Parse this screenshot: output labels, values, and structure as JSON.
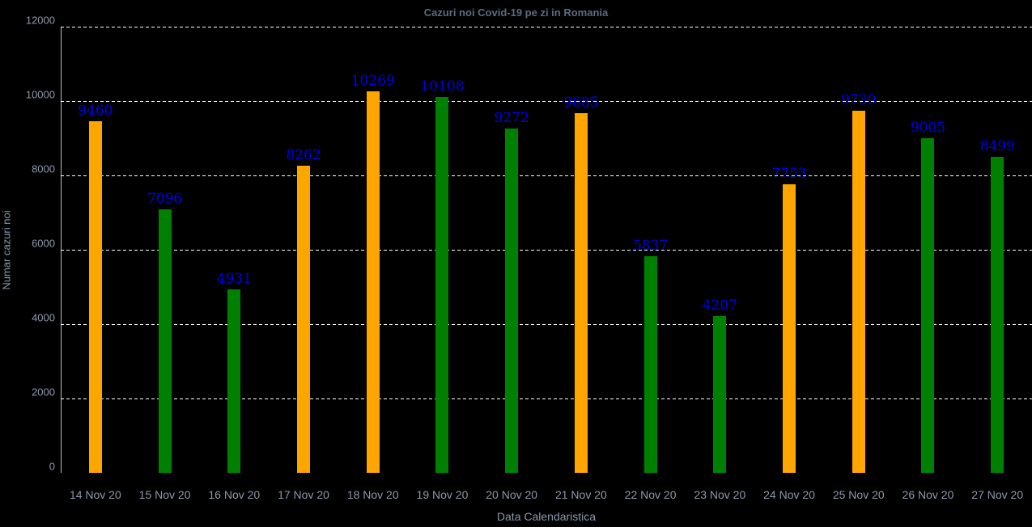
{
  "figure": {
    "background": "#000000"
  },
  "chart_data": {
    "type": "bar",
    "title": "Cazuri noi Covid-19 pe zi in Romania",
    "xlabel": "Data Calendaristica",
    "ylabel": "Numar cazuri noi",
    "ylim": [
      0,
      12000
    ],
    "yticks": [
      0,
      2000,
      4000,
      6000,
      8000,
      10000,
      12000
    ],
    "grid": "horizontal-dotted",
    "legend_position": "none",
    "categories": [
      "14 Nov 20",
      "15 Nov 20",
      "16 Nov 20",
      "17 Nov 20",
      "18 Nov 20",
      "19 Nov 20",
      "20 Nov 20",
      "21 Nov 20",
      "22 Nov 20",
      "23 Nov 20",
      "24 Nov 20",
      "25 Nov 20",
      "26 Nov 20",
      "27 Nov 20"
    ],
    "values": [
      9460,
      7096,
      4931,
      8262,
      10269,
      10108,
      9272,
      9685,
      5837,
      4207,
      7753,
      9739,
      9005,
      8499
    ],
    "bar_colors": [
      "#FFA500",
      "#008000",
      "#008000",
      "#FFA500",
      "#FFA500",
      "#008000",
      "#008000",
      "#FFA500",
      "#008000",
      "#008000",
      "#FFA500",
      "#FFA500",
      "#008000",
      "#008000"
    ],
    "colors": {
      "orange_bar": "#FFA500",
      "green_bar": "#008000",
      "value_label": "#0000EE",
      "title_text": "#5d6b80",
      "tick_text": "#8d98ab",
      "gridline": "#ffffff",
      "axis_line": "#bfbfbf",
      "background": "#000000"
    }
  }
}
